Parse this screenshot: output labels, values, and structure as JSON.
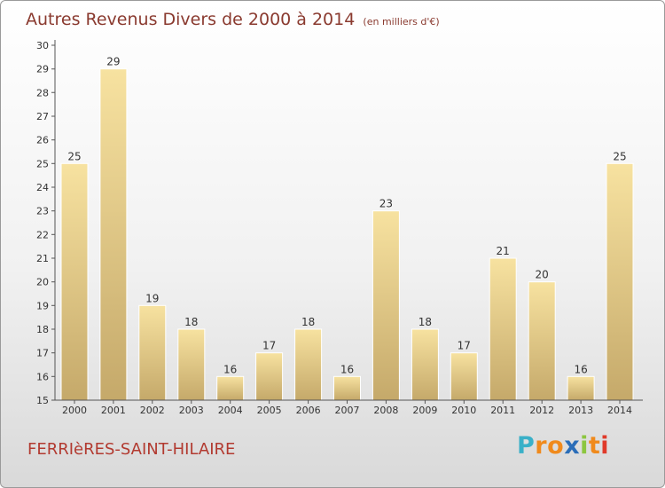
{
  "header": {
    "title": "Autres Revenus Divers de 2000 à 2014",
    "unit": "(en milliers d'€)"
  },
  "footer": {
    "commune": "FERRIèRES-SAINT-HILAIRE",
    "logo_letters": [
      "P",
      "r",
      "o",
      "x",
      "i",
      "t",
      "i"
    ],
    "logo_colors": [
      "#3ab0c8",
      "#f08a1c",
      "#f08a1c",
      "#2a6db8",
      "#8cc63f",
      "#f08a1c",
      "#e03a2a"
    ]
  },
  "colors": {
    "bar_light": "#f7e2a0",
    "bar_dark": "#c5a96a",
    "axis": "#555555"
  },
  "chart_data": {
    "type": "bar",
    "title": "Autres Revenus Divers de 2000 à 2014",
    "subtitle": "(en milliers d'€)",
    "categories": [
      "2000",
      "2001",
      "2002",
      "2003",
      "2004",
      "2005",
      "2006",
      "2007",
      "2008",
      "2009",
      "2010",
      "2011",
      "2012",
      "2013",
      "2014"
    ],
    "values": [
      25,
      29,
      19,
      18,
      16,
      17,
      18,
      16,
      23,
      18,
      17,
      21,
      20,
      16,
      25
    ],
    "ylim": [
      15,
      30
    ],
    "yticks": [
      15,
      16,
      17,
      18,
      19,
      20,
      21,
      22,
      23,
      24,
      25,
      26,
      27,
      28,
      29,
      30
    ],
    "grid": false,
    "data_labels": true
  }
}
